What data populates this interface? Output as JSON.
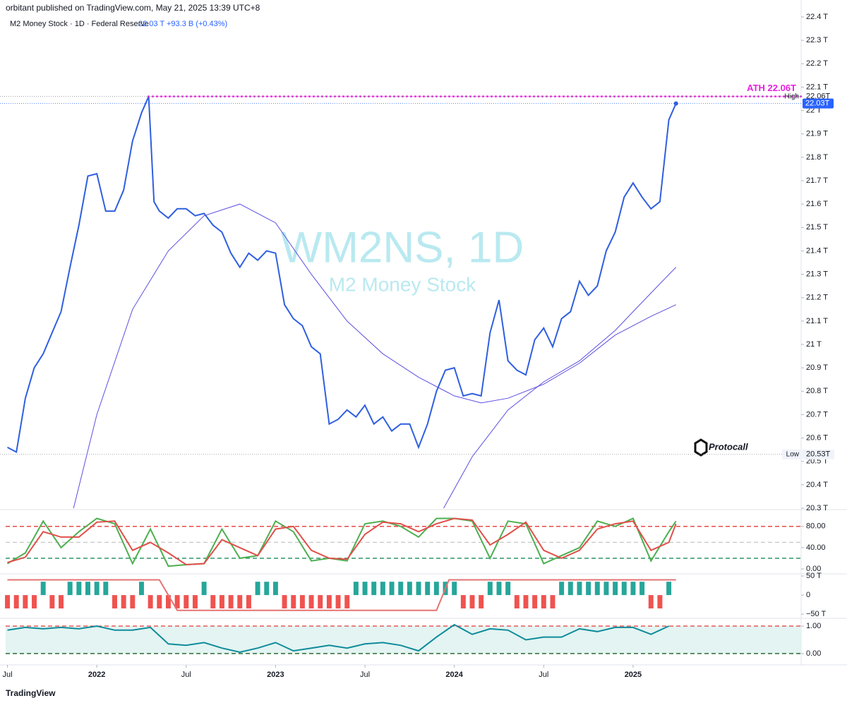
{
  "header": {
    "publisher": "orbitant published on TradingView.com, May 21, 2025 13:39 UTC+8",
    "symbol": "M2 Money Stock · 1D · Federal Reserve",
    "last": "22.03 T",
    "change": "+93.3 B (+0.43%)"
  },
  "watermark": {
    "title": "WM2NS, 1D",
    "subtitle": "M2 Money Stock"
  },
  "logo": "Protocall",
  "footer": "TradingView",
  "chart_data": [
    {
      "type": "line",
      "xlim": [
        2021.49,
        2025.94
      ],
      "xticks": [
        {
          "value": 2021.5,
          "label": "Jul"
        },
        2022,
        {
          "value": 2022.5,
          "label": "Jul"
        },
        2023,
        {
          "value": 2023.5,
          "label": "Jul"
        },
        2024,
        {
          "value": 2024.5,
          "label": "Jul"
        },
        2025
      ],
      "ylim": [
        20.3,
        22.4
      ],
      "yticks": [
        {
          "value": 20.3,
          "label": "20.3 T"
        },
        {
          "value": 20.4,
          "label": "20.4 T"
        },
        {
          "value": 20.5,
          "label": "20.5 T"
        },
        {
          "value": 20.6,
          "label": "20.6 T"
        },
        {
          "value": 20.7,
          "label": "20.7 T"
        },
        {
          "value": 20.8,
          "label": "20.8 T"
        },
        {
          "value": 20.9,
          "label": "20.9 T"
        },
        {
          "value": 21,
          "label": "21 T"
        },
        {
          "value": 21.1,
          "label": "21.1 T"
        },
        {
          "value": 21.2,
          "label": "21.2 T"
        },
        {
          "value": 21.3,
          "label": "21.3 T"
        },
        {
          "value": 21.4,
          "label": "21.4 T"
        },
        {
          "value": 21.5,
          "label": "21.5 T"
        },
        {
          "value": 21.6,
          "label": "21.6 T"
        },
        {
          "value": 21.7,
          "label": "21.7 T"
        },
        {
          "value": 21.8,
          "label": "21.8 T"
        },
        {
          "value": 21.9,
          "label": "21.9 T"
        },
        {
          "value": 22,
          "label": "22 T"
        },
        {
          "value": 22.1,
          "label": "22.1 T"
        },
        {
          "value": 22.2,
          "label": "22.2 T"
        },
        {
          "value": 22.3,
          "label": "22.3 T"
        },
        {
          "value": 22.4,
          "label": "22.4 T"
        }
      ],
      "series": [
        {
          "color": "#2f5fe0",
          "x": [
            2021.5,
            2021.55,
            2021.6,
            2021.65,
            2021.7,
            2021.75,
            2021.8,
            2021.85,
            2021.9,
            2021.95,
            2022,
            2022.05,
            2022.1,
            2022.15,
            2022.2,
            2022.25,
            2022.29,
            2022.32,
            2022.35,
            2022.4,
            2022.45,
            2022.5,
            2022.55,
            2022.6,
            2022.65,
            2022.7,
            2022.75,
            2022.8,
            2022.85,
            2022.9,
            2022.95,
            2023,
            2023.05,
            2023.1,
            2023.15,
            2023.2,
            2023.25,
            2023.3,
            2023.35,
            2023.4,
            2023.45,
            2023.5,
            2023.55,
            2023.6,
            2023.65,
            2023.7,
            2023.75,
            2023.8,
            2023.85,
            2023.9,
            2023.95,
            2024,
            2024.05,
            2024.1,
            2024.15,
            2024.2,
            2024.25,
            2024.3,
            2024.35,
            2024.4,
            2024.45,
            2024.5,
            2024.55,
            2024.6,
            2024.65,
            2024.7,
            2024.75,
            2024.8,
            2024.85,
            2024.9,
            2024.95,
            2025,
            2025.05,
            2025.1,
            2025.15,
            2025.2,
            2025.24
          ],
          "values": [
            20.56,
            20.54,
            20.77,
            20.9,
            20.96,
            21.05,
            21.14,
            21.33,
            21.51,
            21.72,
            21.73,
            21.57,
            21.57,
            21.66,
            21.87,
            21.99,
            22.06,
            21.61,
            21.57,
            21.54,
            21.58,
            21.58,
            21.55,
            21.56,
            21.51,
            21.48,
            21.39,
            21.33,
            21.39,
            21.36,
            21.4,
            21.39,
            21.17,
            21.11,
            21.08,
            20.99,
            20.96,
            20.66,
            20.68,
            20.72,
            20.69,
            20.74,
            20.66,
            20.69,
            20.63,
            20.66,
            20.66,
            20.56,
            20.66,
            20.8,
            20.89,
            20.9,
            20.78,
            20.79,
            20.78,
            21.05,
            21.19,
            20.93,
            20.89,
            20.87,
            21.02,
            21.07,
            20.99,
            21.11,
            21.14,
            21.27,
            21.21,
            21.25,
            21.4,
            21.48,
            21.63,
            21.69,
            21.63,
            21.58,
            21.61,
            21.96,
            22.03
          ]
        },
        {
          "color": "#5b4fe0",
          "x": [
            2021.87,
            2022,
            2022.2,
            2022.4,
            2022.6,
            2022.8,
            2023,
            2023.2,
            2023.4,
            2023.6,
            2023.8,
            2024,
            2024.15,
            2024.3,
            2024.5,
            2024.7,
            2024.9,
            2025.1,
            2025.24
          ],
          "values": [
            20.3,
            20.7,
            21.15,
            21.4,
            21.55,
            21.6,
            21.52,
            21.3,
            21.1,
            20.96,
            20.86,
            20.78,
            20.75,
            20.77,
            20.83,
            20.92,
            21.04,
            21.12,
            21.17
          ]
        },
        {
          "color": "#5b4fe0",
          "x": [
            2023.94,
            2024.1,
            2024.3,
            2024.5,
            2024.7,
            2024.9,
            2025.1,
            2025.24
          ],
          "values": [
            20.3,
            20.52,
            20.72,
            20.84,
            20.93,
            21.06,
            21.22,
            21.33
          ]
        }
      ],
      "ath": {
        "label": "ATH 22.06T",
        "value": 22.06,
        "color": "#e91ee0"
      },
      "high": {
        "label": "High",
        "value": 22.06,
        "value_label": "22.06T"
      },
      "low": {
        "label": "Low",
        "value": 20.53,
        "value_label": "20.53T"
      },
      "last": {
        "value": 22.03,
        "value_label": "22.03T"
      }
    },
    {
      "type": "line",
      "ylim": [
        -8,
        109
      ],
      "yticks": [
        {
          "value": 0,
          "label": "0.00"
        },
        {
          "value": 40,
          "label": "40.00"
        },
        {
          "value": 80,
          "label": "80.00"
        }
      ],
      "levels": [
        {
          "value": 80,
          "color": "#e53935"
        },
        {
          "value": 50,
          "color": "#c8c8c8"
        },
        {
          "value": 20,
          "color": "#1b8a5a"
        }
      ],
      "series": [
        {
          "color": "#4caf50",
          "x": [
            2021.5,
            2021.6,
            2021.7,
            2021.8,
            2021.9,
            2022,
            2022.1,
            2022.2,
            2022.3,
            2022.4,
            2022.5,
            2022.6,
            2022.7,
            2022.8,
            2022.9,
            2023,
            2023.1,
            2023.2,
            2023.3,
            2023.4,
            2023.5,
            2023.6,
            2023.7,
            2023.8,
            2023.9,
            2024,
            2024.1,
            2024.2,
            2024.3,
            2024.4,
            2024.5,
            2024.6,
            2024.7,
            2024.8,
            2024.9,
            2025,
            2025.1,
            2025.2,
            2025.24
          ],
          "values": [
            10,
            30,
            90,
            40,
            70,
            95,
            85,
            10,
            75,
            5,
            8,
            10,
            75,
            20,
            25,
            90,
            70,
            15,
            20,
            15,
            85,
            90,
            80,
            60,
            95,
            95,
            90,
            20,
            90,
            85,
            10,
            25,
            40,
            90,
            80,
            95,
            15,
            70,
            90
          ]
        },
        {
          "color": "#e0504a",
          "x": [
            2021.5,
            2021.6,
            2021.7,
            2021.8,
            2021.9,
            2022,
            2022.1,
            2022.2,
            2022.3,
            2022.4,
            2022.5,
            2022.6,
            2022.7,
            2022.8,
            2022.9,
            2023,
            2023.1,
            2023.2,
            2023.3,
            2023.4,
            2023.5,
            2023.6,
            2023.7,
            2023.8,
            2023.9,
            2024,
            2024.1,
            2024.2,
            2024.3,
            2024.4,
            2024.5,
            2024.6,
            2024.7,
            2024.8,
            2024.9,
            2025,
            2025.1,
            2025.2,
            2025.24
          ],
          "values": [
            12,
            22,
            70,
            60,
            60,
            88,
            90,
            35,
            50,
            30,
            8,
            10,
            55,
            40,
            25,
            75,
            80,
            35,
            20,
            18,
            65,
            88,
            85,
            70,
            85,
            95,
            92,
            45,
            65,
            88,
            35,
            20,
            35,
            75,
            85,
            90,
            35,
            50,
            85
          ]
        }
      ]
    },
    {
      "type": "bar",
      "ylim": [
        -59,
        52
      ],
      "yticks": [
        {
          "value": -50,
          "label": "−50 T"
        },
        0,
        {
          "value": 50,
          "label": "50 T"
        }
      ],
      "up_color": "#26a69a",
      "down_color": "#ef5350",
      "x": [
        2021.5,
        2021.55,
        2021.6,
        2021.65,
        2021.7,
        2021.75,
        2021.8,
        2021.85,
        2021.9,
        2021.95,
        2022,
        2022.05,
        2022.1,
        2022.15,
        2022.2,
        2022.25,
        2022.3,
        2022.35,
        2022.4,
        2022.45,
        2022.5,
        2022.55,
        2022.6,
        2022.65,
        2022.7,
        2022.75,
        2022.8,
        2022.85,
        2022.9,
        2022.95,
        2023,
        2023.05,
        2023.1,
        2023.15,
        2023.2,
        2023.25,
        2023.3,
        2023.35,
        2023.4,
        2023.45,
        2023.5,
        2023.55,
        2023.6,
        2023.65,
        2023.7,
        2023.75,
        2023.8,
        2023.85,
        2023.9,
        2023.95,
        2024,
        2024.05,
        2024.1,
        2024.15,
        2024.2,
        2024.25,
        2024.3,
        2024.35,
        2024.4,
        2024.45,
        2024.5,
        2024.55,
        2024.6,
        2024.65,
        2024.7,
        2024.75,
        2024.8,
        2024.85,
        2024.9,
        2024.95,
        2025,
        2025.05,
        2025.1,
        2025.15,
        2025.2
      ],
      "values": [
        -35,
        -35,
        -35,
        -35,
        35,
        -35,
        -35,
        35,
        35,
        35,
        35,
        35,
        -35,
        -35,
        -35,
        35,
        -35,
        -35,
        -35,
        -35,
        -35,
        -35,
        35,
        -35,
        -35,
        -35,
        -35,
        -35,
        35,
        35,
        35,
        -35,
        -35,
        -35,
        -35,
        -35,
        -35,
        -35,
        -35,
        35,
        35,
        35,
        35,
        35,
        35,
        35,
        35,
        35,
        35,
        35,
        35,
        -35,
        -35,
        -35,
        35,
        35,
        35,
        -35,
        -35,
        -35,
        -35,
        -35,
        35,
        35,
        35,
        35,
        35,
        35,
        35,
        35,
        35,
        35,
        -35,
        -35,
        35
      ],
      "series": [
        {
          "color": "#e57373",
          "x": [
            2021.5,
            2022.35,
            2022.45,
            2023.9,
            2023.97,
            2025.24
          ],
          "values": [
            40,
            40,
            -40,
            -40,
            40,
            40
          ]
        }
      ]
    },
    {
      "type": "line",
      "ylim": [
        -0.36,
        1.23
      ],
      "yticks": [
        {
          "value": 0,
          "label": "0.00"
        },
        {
          "value": 1,
          "label": "1.00"
        }
      ],
      "band_color": "#e3f4f2",
      "levels": [
        {
          "value": 1,
          "color": "#e53935"
        },
        {
          "value": 0,
          "color": "#1b5e20"
        }
      ],
      "series": [
        {
          "color": "#0f8b9a",
          "x": [
            2021.5,
            2021.6,
            2021.7,
            2021.8,
            2021.9,
            2022,
            2022.1,
            2022.2,
            2022.3,
            2022.4,
            2022.5,
            2022.6,
            2022.7,
            2022.8,
            2022.9,
            2023,
            2023.1,
            2023.2,
            2023.3,
            2023.4,
            2023.5,
            2023.6,
            2023.7,
            2023.8,
            2023.9,
            2024,
            2024.1,
            2024.2,
            2024.3,
            2024.4,
            2024.5,
            2024.6,
            2024.7,
            2024.8,
            2024.9,
            2025,
            2025.1,
            2025.2
          ],
          "values": [
            0.85,
            0.95,
            0.9,
            0.95,
            0.9,
            1,
            0.85,
            0.85,
            0.95,
            0.35,
            0.3,
            0.4,
            0.2,
            0.05,
            0.2,
            0.4,
            0.1,
            0.2,
            0.3,
            0.2,
            0.35,
            0.4,
            0.3,
            0.1,
            0.6,
            1.05,
            0.7,
            0.9,
            0.85,
            0.5,
            0.6,
            0.6,
            0.9,
            0.8,
            0.95,
            0.95,
            0.7,
            1
          ]
        }
      ]
    }
  ]
}
